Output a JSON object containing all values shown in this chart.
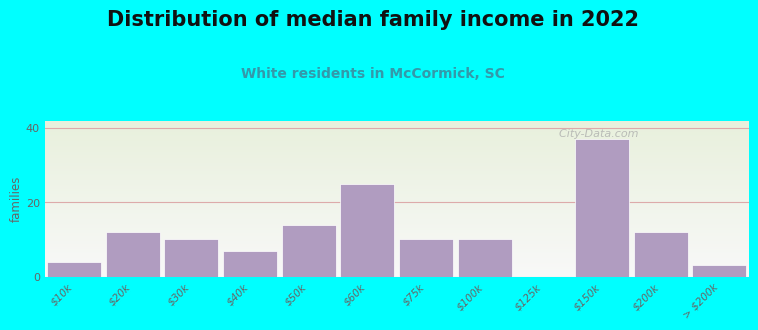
{
  "title": "Distribution of median family income in 2022",
  "subtitle": "White residents in McCormick, SC",
  "categories": [
    "$10k",
    "$20k",
    "$30k",
    "$40k",
    "$50k",
    "$60k",
    "$75k",
    "$100k",
    "$125k",
    "$150k",
    "$200k",
    "> $200k"
  ],
  "values": [
    4,
    12,
    10,
    7,
    14,
    25,
    10,
    10,
    0,
    37,
    12,
    3
  ],
  "bar_color": "#b09cc0",
  "background_color": "#00ffff",
  "plot_bg_top_color": "#e8f0dc",
  "plot_bg_bottom_color": "#f8f8f8",
  "title_fontsize": 15,
  "subtitle_fontsize": 10,
  "ylabel": "families",
  "yticks": [
    0,
    20,
    40
  ],
  "ylim": [
    0,
    42
  ],
  "grid_color": "#ddaaaa",
  "watermark": "  City-Data.com",
  "subtitle_color": "#3399aa",
  "tick_label_color": "#666666"
}
